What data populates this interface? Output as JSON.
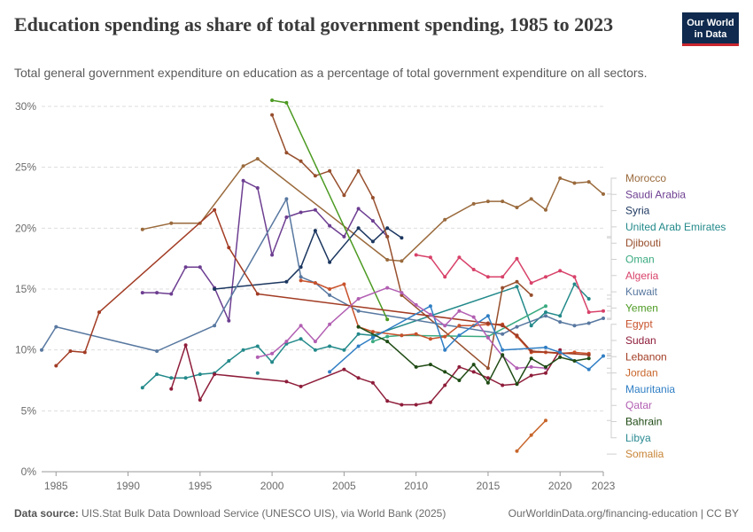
{
  "header": {
    "title": "Education spending as share of total government spending, 1985 to 2023",
    "subtitle": "Total general government expenditure on education as a percentage of total government expenditure on all sectors.",
    "logo_line1": "Our World",
    "logo_line2": "in Data"
  },
  "footer": {
    "source_label": "Data source:",
    "source_text": "UIS.Stat Bulk Data Download Service (UNESCO UIS), via World Bank (2025)",
    "url": "OurWorldinData.org/financing-education | CC BY"
  },
  "chart_data": {
    "type": "line",
    "title": "Education spending as share of total government spending, 1985 to 2023",
    "xlim": [
      1984,
      2023
    ],
    "ylim": [
      0,
      30
    ],
    "x_ticks": [
      1985,
      1990,
      1995,
      2000,
      2005,
      2010,
      2015,
      2020,
      2023
    ],
    "y_ticks": [
      0,
      5,
      10,
      15,
      20,
      25,
      30
    ],
    "y_tick_labels": [
      "0%",
      "5%",
      "10%",
      "15%",
      "20%",
      "25%",
      "30%"
    ],
    "grid": "horizontal dashed",
    "legend": "right",
    "series": [
      {
        "name": "Morocco",
        "color": "#9a6a3c",
        "points": [
          [
            1991,
            19.9
          ],
          [
            1993,
            20.4
          ],
          [
            1995,
            20.4
          ],
          [
            1998,
            25.1
          ],
          [
            1999,
            25.7
          ],
          [
            2008,
            17.4
          ],
          [
            2009,
            17.3
          ],
          [
            2012,
            20.7
          ],
          [
            2014,
            22.0
          ],
          [
            2015,
            22.2
          ],
          [
            2016,
            22.2
          ],
          [
            2017,
            21.7
          ],
          [
            2018,
            22.4
          ],
          [
            2019,
            21.5
          ],
          [
            2020,
            24.1
          ],
          [
            2021,
            23.7
          ],
          [
            2022,
            23.8
          ],
          [
            2023,
            22.8
          ]
        ]
      },
      {
        "name": "Saudi Arabia",
        "color": "#6d3e91",
        "points": [
          [
            1991,
            14.7
          ],
          [
            1992,
            14.7
          ],
          [
            1993,
            14.6
          ],
          [
            1994,
            16.8
          ],
          [
            1995,
            16.8
          ],
          [
            1996,
            15.1
          ],
          [
            1997,
            12.4
          ],
          [
            1998,
            23.9
          ],
          [
            1999,
            23.3
          ],
          [
            2000,
            17.8
          ],
          [
            2001,
            20.9
          ],
          [
            2002,
            21.3
          ],
          [
            2003,
            21.5
          ],
          [
            2004,
            20.2
          ],
          [
            2005,
            19.3
          ],
          [
            2006,
            21.6
          ],
          [
            2007,
            20.6
          ],
          [
            2008,
            19.3
          ]
        ]
      },
      {
        "name": "Syria",
        "color": "#1b365f",
        "points": [
          [
            1996,
            15.0
          ],
          [
            2001,
            15.6
          ],
          [
            2002,
            16.8
          ],
          [
            2003,
            19.8
          ],
          [
            2004,
            17.2
          ],
          [
            2006,
            20.0
          ],
          [
            2007,
            18.9
          ],
          [
            2008,
            20.0
          ],
          [
            2009,
            19.2
          ]
        ]
      },
      {
        "name": "United Arab Emirates",
        "color": "#23898a",
        "points": [
          [
            1991,
            6.9
          ],
          [
            1992,
            8.0
          ],
          [
            1993,
            7.7
          ],
          [
            1994,
            7.7
          ],
          [
            1995,
            8.0
          ],
          [
            1996,
            8.1
          ],
          [
            1997,
            9.1
          ],
          [
            1998,
            10.0
          ],
          [
            1999,
            10.3
          ],
          [
            2000,
            9.0
          ],
          [
            2001,
            10.5
          ],
          [
            2002,
            10.9
          ],
          [
            2003,
            10.0
          ],
          [
            2004,
            10.3
          ],
          [
            2005,
            10.0
          ],
          [
            2006,
            11.3
          ],
          [
            2007,
            11.2
          ],
          [
            2017,
            15.2
          ],
          [
            2018,
            12.0
          ],
          [
            2019,
            13.1
          ],
          [
            2020,
            12.8
          ],
          [
            2021,
            15.4
          ],
          [
            2022,
            14.2
          ]
        ]
      },
      {
        "name": "Djibouti",
        "color": "#974f2d",
        "points": [
          [
            2000,
            29.3
          ],
          [
            2001,
            26.2
          ],
          [
            2002,
            25.5
          ],
          [
            2003,
            24.3
          ],
          [
            2004,
            24.7
          ],
          [
            2005,
            22.7
          ],
          [
            2006,
            24.7
          ],
          [
            2007,
            22.5
          ],
          [
            2008,
            19.3
          ],
          [
            2009,
            14.5
          ],
          [
            2015,
            8.5
          ],
          [
            2016,
            15.1
          ],
          [
            2017,
            15.6
          ],
          [
            2018,
            14.5
          ]
        ]
      },
      {
        "name": "Oman",
        "color": "#3aaa80",
        "points": [
          [
            2007,
            10.7
          ],
          [
            2008,
            11.1
          ],
          [
            2009,
            11.2
          ],
          [
            2015,
            11.1
          ],
          [
            2019,
            13.6
          ]
        ]
      },
      {
        "name": "Algeria",
        "color": "#d8426a",
        "points": [
          [
            2010,
            17.8
          ],
          [
            2011,
            17.6
          ],
          [
            2012,
            16.0
          ],
          [
            2013,
            17.6
          ],
          [
            2014,
            16.6
          ],
          [
            2015,
            16.0
          ],
          [
            2016,
            16.0
          ],
          [
            2017,
            17.5
          ],
          [
            2018,
            15.5
          ],
          [
            2019,
            16.0
          ],
          [
            2020,
            16.5
          ],
          [
            2021,
            16.0
          ],
          [
            2022,
            13.1
          ],
          [
            2023,
            13.2
          ]
        ]
      },
      {
        "name": "Kuwait",
        "color": "#5878a0",
        "points": [
          [
            1984,
            10.0
          ],
          [
            1985,
            11.9
          ],
          [
            1992,
            9.9
          ],
          [
            1996,
            12.0
          ],
          [
            2001,
            22.4
          ],
          [
            2002,
            16.0
          ],
          [
            2003,
            15.5
          ],
          [
            2004,
            14.5
          ],
          [
            2006,
            13.2
          ],
          [
            2016,
            11.3
          ],
          [
            2017,
            11.9
          ],
          [
            2019,
            12.8
          ],
          [
            2020,
            12.3
          ],
          [
            2021,
            12.0
          ],
          [
            2022,
            12.2
          ],
          [
            2023,
            12.6
          ]
        ]
      },
      {
        "name": "Yemen",
        "color": "#4c9a22",
        "points": [
          [
            2000,
            30.5
          ],
          [
            2001,
            30.3
          ],
          [
            2008,
            12.5
          ]
        ]
      },
      {
        "name": "Egypt",
        "color": "#c8512b",
        "points": [
          [
            2002,
            15.7
          ],
          [
            2003,
            15.5
          ],
          [
            2004,
            15.0
          ],
          [
            2005,
            15.4
          ],
          [
            2006,
            11.9
          ],
          [
            2007,
            11.5
          ],
          [
            2009,
            11.2
          ],
          [
            2010,
            11.3
          ],
          [
            2011,
            10.9
          ],
          [
            2012,
            11.1
          ],
          [
            2013,
            12.0
          ],
          [
            2014,
            12.0
          ],
          [
            2015,
            12.1
          ],
          [
            2016,
            12.1
          ],
          [
            2017,
            11.1
          ],
          [
            2018,
            9.8
          ],
          [
            2019,
            9.8
          ],
          [
            2020,
            9.7
          ],
          [
            2021,
            9.8
          ],
          [
            2022,
            9.7
          ]
        ]
      },
      {
        "name": "Sudan",
        "color": "#8e1d3a",
        "points": [
          [
            1993,
            6.8
          ],
          [
            1994,
            10.4
          ],
          [
            1995,
            5.9
          ],
          [
            1996,
            8.0
          ],
          [
            2001,
            7.4
          ],
          [
            2002,
            7.0
          ],
          [
            2005,
            8.4
          ],
          [
            2006,
            7.7
          ],
          [
            2007,
            7.3
          ],
          [
            2008,
            5.8
          ],
          [
            2009,
            5.5
          ],
          [
            2010,
            5.5
          ],
          [
            2011,
            5.7
          ],
          [
            2012,
            7.1
          ],
          [
            2013,
            8.6
          ],
          [
            2014,
            8.2
          ],
          [
            2015,
            7.7
          ],
          [
            2016,
            7.1
          ],
          [
            2017,
            7.2
          ],
          [
            2018,
            7.9
          ],
          [
            2019,
            8.1
          ],
          [
            2020,
            10.0
          ]
        ]
      },
      {
        "name": "Lebanon",
        "color": "#a23c24",
        "points": [
          [
            1985,
            8.7
          ],
          [
            1986,
            9.9
          ],
          [
            1987,
            9.8
          ],
          [
            1988,
            13.1
          ],
          [
            1996,
            21.5
          ],
          [
            1997,
            18.4
          ],
          [
            1999,
            14.6
          ],
          [
            2015,
            12.2
          ],
          [
            2016,
            12.0
          ],
          [
            2017,
            11.2
          ],
          [
            2018,
            9.9
          ],
          [
            2022,
            9.6
          ]
        ]
      },
      {
        "name": "Jordan",
        "color": "#c8662c",
        "points": [
          [
            2017,
            1.7
          ],
          [
            2018,
            3.0
          ],
          [
            2019,
            4.2
          ]
        ]
      },
      {
        "name": "Mauritania",
        "color": "#2f7ec4",
        "points": [
          [
            2004,
            8.2
          ],
          [
            2006,
            10.3
          ],
          [
            2007,
            11.0
          ],
          [
            2011,
            13.6
          ],
          [
            2012,
            10.0
          ],
          [
            2013,
            11.2
          ],
          [
            2015,
            12.8
          ],
          [
            2016,
            10.0
          ],
          [
            2019,
            10.2
          ],
          [
            2020,
            9.8
          ],
          [
            2022,
            8.4
          ],
          [
            2023,
            9.5
          ]
        ]
      },
      {
        "name": "Qatar",
        "color": "#b25fb2",
        "points": [
          [
            1999,
            9.4
          ],
          [
            2000,
            9.7
          ],
          [
            2001,
            10.7
          ],
          [
            2002,
            12.0
          ],
          [
            2003,
            10.7
          ],
          [
            2004,
            12.1
          ],
          [
            2006,
            14.2
          ],
          [
            2008,
            15.1
          ],
          [
            2009,
            14.7
          ],
          [
            2010,
            13.7
          ],
          [
            2011,
            12.9
          ],
          [
            2012,
            12.0
          ],
          [
            2013,
            13.2
          ],
          [
            2014,
            12.7
          ],
          [
            2015,
            11.0
          ],
          [
            2016,
            9.5
          ],
          [
            2017,
            8.5
          ],
          [
            2018,
            8.6
          ],
          [
            2019,
            8.5
          ]
        ]
      },
      {
        "name": "Bahrain",
        "color": "#1f4b14",
        "points": [
          [
            2006,
            11.9
          ],
          [
            2008,
            10.7
          ],
          [
            2010,
            8.6
          ],
          [
            2011,
            8.8
          ],
          [
            2012,
            8.2
          ],
          [
            2013,
            7.5
          ],
          [
            2014,
            8.8
          ],
          [
            2015,
            7.3
          ],
          [
            2016,
            9.6
          ],
          [
            2017,
            7.2
          ],
          [
            2018,
            9.3
          ],
          [
            2019,
            8.6
          ],
          [
            2020,
            9.4
          ],
          [
            2021,
            9.1
          ],
          [
            2022,
            9.3
          ]
        ]
      },
      {
        "name": "Libya",
        "color": "#2a8a92",
        "points": [
          [
            1999,
            8.1
          ]
        ]
      },
      {
        "name": "Somalia",
        "color": "#c88537",
        "points": []
      }
    ]
  }
}
